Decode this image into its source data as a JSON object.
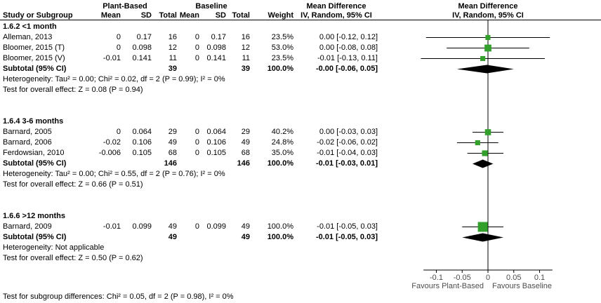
{
  "header": {
    "group1": "Plant-Based",
    "group2": "Baseline",
    "md_text_col": "Mean Difference",
    "md_plot_col": "Mean Difference",
    "study": "Study or Subgroup",
    "mean1": "Mean",
    "sd1": "SD",
    "total1": "Total",
    "mean2": "Mean",
    "sd2": "SD",
    "total2": "Total",
    "weight": "Weight",
    "ci_text_col": "IV, Random, 95% CI",
    "ci_plot_col": "IV, Random, 95% CI"
  },
  "chart_data": {
    "type": "scatter",
    "variant": "forest-plot",
    "effect_measure": "Mean Difference, IV, Random, 95% CI",
    "colors": {
      "square": "#33A02C",
      "diamond": "#000000",
      "line": "#000000",
      "axis_text": "#4d4d4d"
    },
    "axis": {
      "min": -0.125,
      "max": 0.125,
      "ticks": [
        -0.1,
        -0.05,
        0,
        0.05,
        0.1
      ],
      "tick_labels": [
        "-0.1",
        "-0.05",
        "0",
        "0.05",
        "0.1"
      ],
      "favours_left": "Favours Plant-Based",
      "favours_right": "Favours Baseline"
    },
    "subgroups": [
      {
        "title": "1.6.2 <1 month",
        "studies": [
          {
            "name": "Alleman, 2013",
            "mean1": "0",
            "sd1": "0.17",
            "total1": "16",
            "mean2": "0",
            "sd2": "0.17",
            "total2": "16",
            "weight": "23.5%",
            "ci_text": "0.00 [-0.12, 0.12]",
            "est": 0,
            "lo": -0.12,
            "hi": 0.12,
            "weight_pct": 23.5
          },
          {
            "name": "Bloomer, 2015 (T)",
            "mean1": "0",
            "sd1": "0.098",
            "total1": "12",
            "mean2": "0",
            "sd2": "0.098",
            "total2": "12",
            "weight": "53.0%",
            "ci_text": "0.00 [-0.08, 0.08]",
            "est": 0,
            "lo": -0.08,
            "hi": 0.08,
            "weight_pct": 53.0
          },
          {
            "name": "Bloomer, 2015 (V)",
            "mean1": "-0.01",
            "sd1": "0.141",
            "total1": "11",
            "mean2": "0",
            "sd2": "0.141",
            "total2": "11",
            "weight": "23.5%",
            "ci_text": "-0.01 [-0.13, 0.11]",
            "est": -0.01,
            "lo": -0.13,
            "hi": 0.11,
            "weight_pct": 23.5
          }
        ],
        "subtotal": {
          "label": "Subtotal (95% CI)",
          "total1": "39",
          "total2": "39",
          "weight": "100.0%",
          "ci_text": "-0.00 [-0.06, 0.05]",
          "est": -0.002,
          "lo": -0.06,
          "hi": 0.05
        },
        "heterogeneity": "Heterogeneity: Tau² = 0.00; Chi² = 0.02, df = 2 (P = 0.99); I² = 0%",
        "overall_test": "Test for overall effect: Z = 0.08 (P = 0.94)"
      },
      {
        "title": "1.6.4 3-6 months",
        "studies": [
          {
            "name": "Barnard, 2005",
            "mean1": "0",
            "sd1": "0.064",
            "total1": "29",
            "mean2": "0",
            "sd2": "0.064",
            "total2": "29",
            "weight": "40.2%",
            "ci_text": "0.00 [-0.03, 0.03]",
            "est": 0,
            "lo": -0.03,
            "hi": 0.03,
            "weight_pct": 40.2
          },
          {
            "name": "Barnard, 2006",
            "mean1": "-0.02",
            "sd1": "0.106",
            "total1": "49",
            "mean2": "0",
            "sd2": "0.106",
            "total2": "49",
            "weight": "24.8%",
            "ci_text": "-0.02 [-0.06, 0.02]",
            "est": -0.02,
            "lo": -0.06,
            "hi": 0.02,
            "weight_pct": 24.8
          },
          {
            "name": "Ferdowsian, 2010",
            "mean1": "-0.006",
            "sd1": "0.105",
            "total1": "68",
            "mean2": "0",
            "sd2": "0.105",
            "total2": "68",
            "weight": "35.0%",
            "ci_text": "-0.01 [-0.04, 0.03]",
            "est": -0.006,
            "lo": -0.04,
            "hi": 0.03,
            "weight_pct": 35.0
          }
        ],
        "subtotal": {
          "label": "Subtotal (95% CI)",
          "total1": "146",
          "total2": "146",
          "weight": "100.0%",
          "ci_text": "-0.01 [-0.03, 0.01]",
          "est": -0.01,
          "lo": -0.03,
          "hi": 0.01
        },
        "heterogeneity": "Heterogeneity: Tau² = 0.00; Chi² = 0.55, df = 2 (P = 0.76); I² = 0%",
        "overall_test": "Test for overall effect: Z = 0.66 (P = 0.51)"
      },
      {
        "title": "1.6.6 >12 months",
        "studies": [
          {
            "name": "Barnard, 2009",
            "mean1": "-0.01",
            "sd1": "0.099",
            "total1": "49",
            "mean2": "0",
            "sd2": "0.099",
            "total2": "49",
            "weight": "100.0%",
            "ci_text": "-0.01 [-0.05, 0.03]",
            "est": -0.01,
            "lo": -0.05,
            "hi": 0.03,
            "weight_pct": 100.0
          }
        ],
        "subtotal": {
          "label": "Subtotal (95% CI)",
          "total1": "49",
          "total2": "49",
          "weight": "100.0%",
          "ci_text": "-0.01 [-0.05, 0.03]",
          "est": -0.01,
          "lo": -0.05,
          "hi": 0.03
        },
        "heterogeneity": "Heterogeneity: Not applicable",
        "overall_test": "Test for overall effect: Z = 0.50 (P = 0.62)"
      }
    ]
  },
  "footer": {
    "subgroup_test": "Test for subgroup differences: Chi² = 0.05, df = 2 (P = 0.98), I² = 0%"
  }
}
